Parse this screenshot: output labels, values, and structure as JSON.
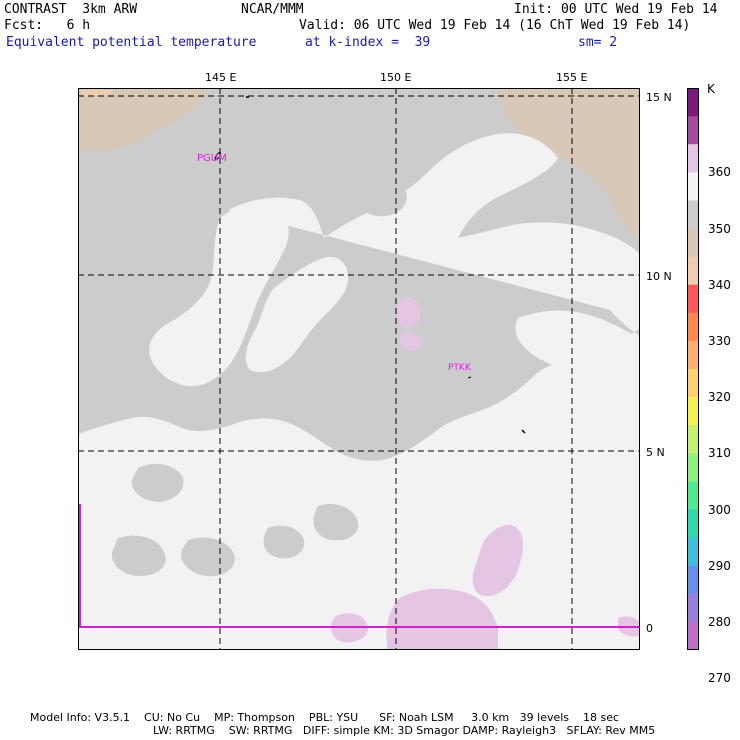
{
  "header": {
    "model": "CONTRAST  3km ARW",
    "center": "NCAR/MMM",
    "init": "Init: 00 UTC Wed 19 Feb 14",
    "fcst": "Fcst:   6 h",
    "valid": "Valid: 06 UTC Wed 19 Feb 14 (16 ChT Wed 19 Feb 14)",
    "field": "Equivalent potential temperature",
    "level": "at k-index =  39",
    "smooth": "sm= 2"
  },
  "map": {
    "lon_labels": [
      "145 E",
      "150 E",
      "155 E"
    ],
    "lat_labels": [
      "15 N",
      "10 N",
      "5 N",
      "0"
    ],
    "stations": [
      "PGUM",
      "PTKK"
    ]
  },
  "colorbar": {
    "unit": "K",
    "labels": [
      "360",
      "350",
      "340",
      "330",
      "320",
      "310",
      "300",
      "290",
      "280",
      "270"
    ],
    "colors": [
      "#7a1a7a",
      "#a44a9a",
      "#e4c6e4",
      "#f2f2f2",
      "#cccccc",
      "#d8c8b8",
      "#f2ccb0",
      "#ff5a5a",
      "#ff8a50",
      "#ffb070",
      "#ffd070",
      "#f4f050",
      "#c8f070",
      "#90f080",
      "#50e890",
      "#30d8b0",
      "#40c0d8",
      "#6890e8",
      "#9a80d8",
      "#c070c8"
    ]
  },
  "footer": {
    "line1": "Model Info: V3.5.1    CU: No Cu    MP: Thompson    PBL: YSU      SF: Noah LSM     3.0 km   39 levels    18 sec",
    "line2": "LW: RRTMG    SW: RRTMG   DIFF: simple KM: 3D Smagor DAMP: Rayleigh3   SFLAY: Rev MM5"
  }
}
